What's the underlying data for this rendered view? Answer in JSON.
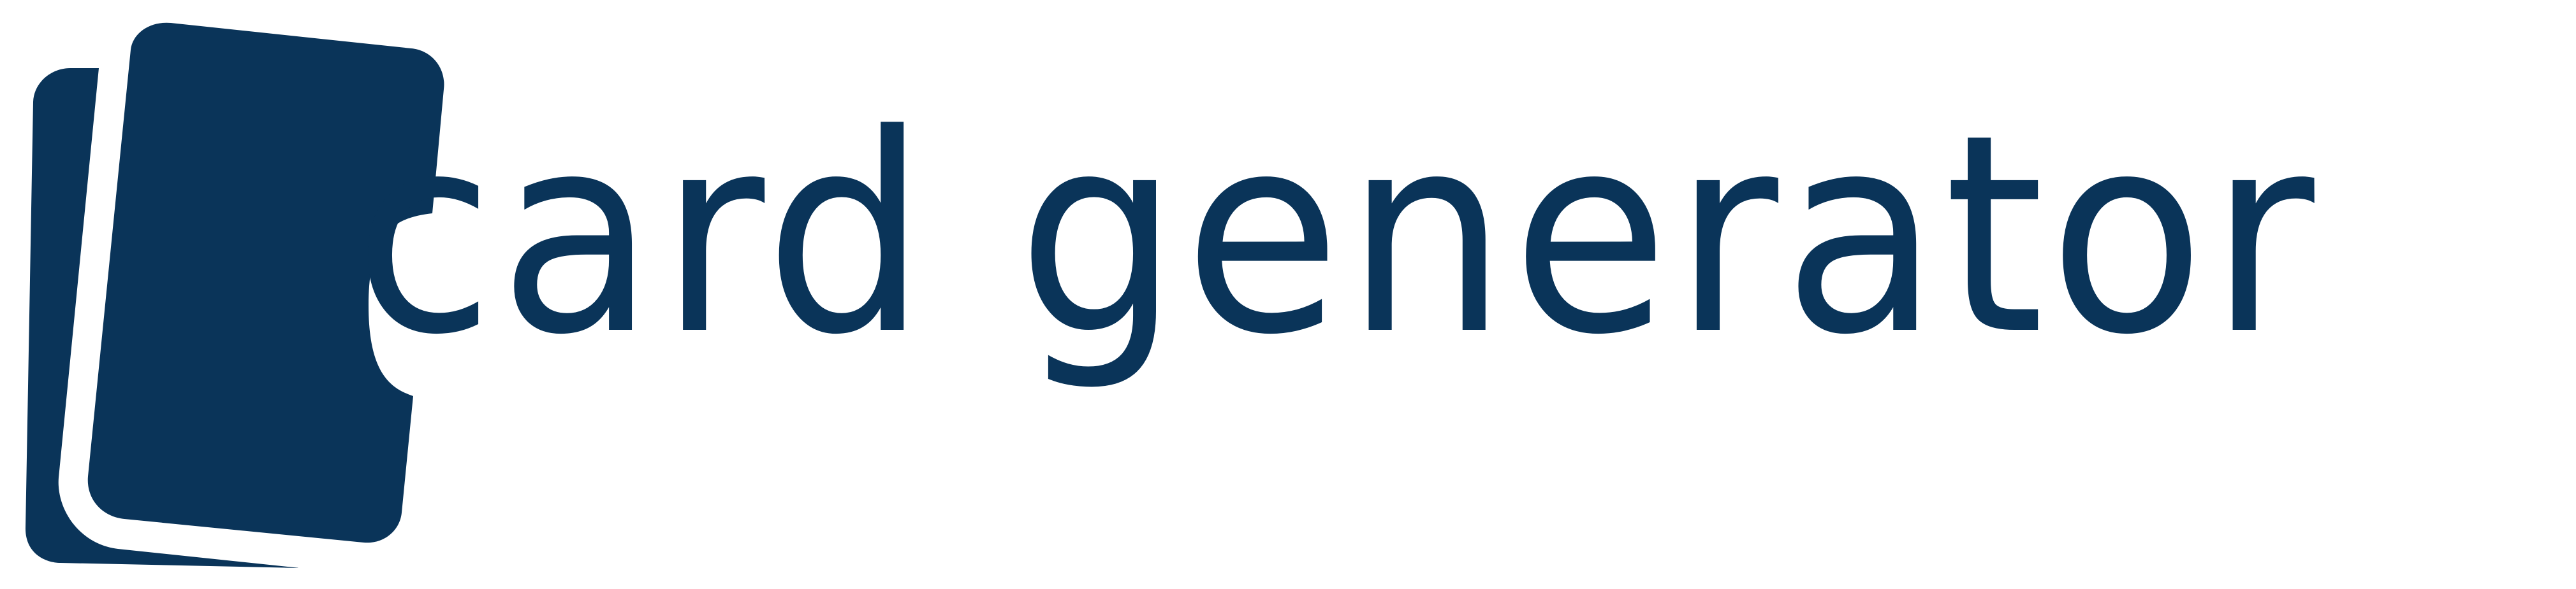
{
  "logo": {
    "wordmark": "card generator",
    "brand_color": "#0a3459",
    "background_color": "#ffffff",
    "icon": "stacked-cards-icon"
  }
}
